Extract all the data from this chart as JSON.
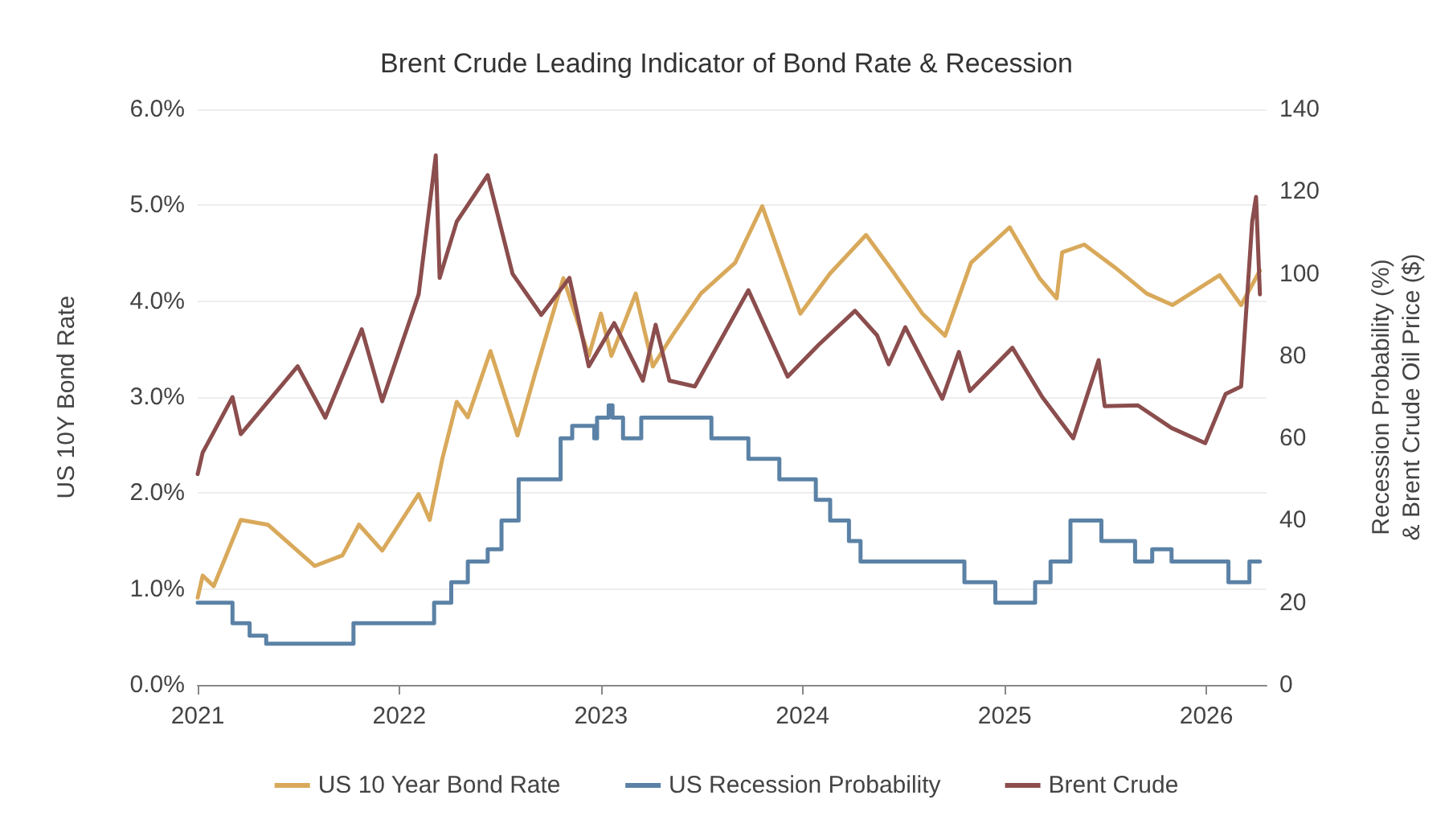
{
  "chart_data": {
    "type": "line",
    "title": "Brent Crude Leading Indicator of Bond Rate & Recession",
    "ylabel": "US 10Y Bond Rate",
    "y2label": "Recession Probability (%) & Brent Crude Oil Price ($)",
    "xlim": [
      "2021-01-01",
      "2026-04-20"
    ],
    "xticks": [
      "2021",
      "2022",
      "2023",
      "2024",
      "2025",
      "2026"
    ],
    "ylim": [
      0,
      6
    ],
    "yticks": [
      {
        "value": 0,
        "label": "0.0%"
      },
      {
        "value": 1,
        "label": "1.0%"
      },
      {
        "value": 2,
        "label": "2.0%"
      },
      {
        "value": 3,
        "label": "3.0%"
      },
      {
        "value": 4,
        "label": "4.0%"
      },
      {
        "value": 5,
        "label": "5.0%"
      },
      {
        "value": 6,
        "label": "6.0%"
      }
    ],
    "y2lim": [
      0,
      140
    ],
    "y2ticks": [
      0,
      20,
      40,
      60,
      80,
      100,
      120,
      140
    ],
    "grid": "y",
    "legend": "bottom",
    "line_style": "solid",
    "marker": "none",
    "series": [
      {
        "name": "US 10 Year Bond Rate",
        "color": "#d9a95b",
        "x": [
          "2021-01-01",
          "2021-01-10",
          "2021-01-30",
          "2021-03-20",
          "2021-05-08",
          "2021-08-01",
          "2021-09-20",
          "2021-10-20",
          "2021-12-01",
          "2022-02-05",
          "2022-02-25",
          "2022-03-20",
          "2022-04-15",
          "2022-05-05",
          "2022-06-15",
          "2022-08-03",
          "2022-09-05",
          "2022-10-25",
          "2022-12-10",
          "2023-01-01",
          "2023-01-20",
          "2023-03-05",
          "2023-04-05",
          "2023-05-10",
          "2023-07-01",
          "2023-09-01",
          "2023-10-20",
          "2023-12-28",
          "2024-02-20",
          "2024-04-25",
          "2024-06-15",
          "2024-08-05",
          "2024-09-15",
          "2024-11-01",
          "2025-01-10",
          "2025-03-05",
          "2025-04-05",
          "2025-04-15",
          "2025-05-25",
          "2025-07-20",
          "2025-09-15",
          "2025-11-01",
          "2026-01-25",
          "2026-03-05",
          "2026-04-08"
        ],
        "values": [
          0.91,
          1.14,
          1.03,
          1.72,
          1.67,
          1.24,
          1.35,
          1.67,
          1.4,
          1.99,
          1.72,
          2.36,
          2.95,
          2.79,
          3.48,
          2.6,
          3.27,
          4.24,
          3.43,
          3.87,
          3.43,
          4.08,
          3.32,
          3.64,
          4.08,
          4.4,
          4.99,
          3.87,
          4.29,
          4.69,
          4.29,
          3.87,
          3.64,
          4.4,
          4.77,
          4.24,
          4.03,
          4.51,
          4.59,
          4.35,
          4.08,
          3.96,
          4.27,
          3.96,
          4.32
        ]
      },
      {
        "name": "US Recession Probability",
        "color": "#5b82a6",
        "type": "step",
        "axis": "y2",
        "x": [
          "2021-01-01",
          "2021-03-05",
          "2021-04-05",
          "2021-05-05",
          "2021-10-10",
          "2022-03-05",
          "2022-04-05",
          "2022-05-05",
          "2022-06-10",
          "2022-07-05",
          "2022-08-05",
          "2022-10-20",
          "2022-11-10",
          "2022-12-20",
          "2022-12-25",
          "2023-01-15",
          "2023-01-22",
          "2023-02-10",
          "2023-03-15",
          "2023-07-20",
          "2023-09-25",
          "2023-11-20",
          "2024-01-25",
          "2024-02-20",
          "2024-03-25",
          "2024-04-15",
          "2024-10-20",
          "2024-12-15",
          "2025-02-25",
          "2025-03-25",
          "2025-04-30",
          "2025-06-25",
          "2025-08-25",
          "2025-09-25",
          "2025-10-30",
          "2026-02-10",
          "2026-03-20",
          "2026-04-08"
        ],
        "values": [
          20,
          15,
          12,
          10,
          15,
          20,
          25,
          30,
          33,
          40,
          50,
          60,
          63,
          60,
          65,
          68,
          65,
          60,
          65,
          60,
          55,
          50,
          45,
          40,
          35,
          30,
          25,
          20,
          25,
          30,
          40,
          35,
          30,
          33,
          30,
          25,
          30,
          30
        ]
      },
      {
        "name": "Brent Crude",
        "color": "#8b4d4d",
        "axis": "y2",
        "x": [
          "2021-01-01",
          "2021-01-10",
          "2021-03-05",
          "2021-03-20",
          "2021-07-01",
          "2021-08-20",
          "2021-10-25",
          "2021-12-01",
          "2022-02-05",
          "2022-03-08",
          "2022-03-15",
          "2022-04-15",
          "2022-06-10",
          "2022-07-25",
          "2022-09-15",
          "2022-11-05",
          "2022-12-10",
          "2023-01-25",
          "2023-03-18",
          "2023-04-10",
          "2023-05-05",
          "2023-06-20",
          "2023-09-25",
          "2023-12-05",
          "2024-01-30",
          "2024-04-05",
          "2024-05-15",
          "2024-06-05",
          "2024-07-05",
          "2024-09-10",
          "2024-10-10",
          "2024-10-30",
          "2025-01-15",
          "2025-03-10",
          "2025-05-05",
          "2025-06-20",
          "2025-07-01",
          "2025-08-30",
          "2025-10-30",
          "2025-12-30",
          "2026-02-05",
          "2026-03-05",
          "2026-03-25",
          "2026-04-01",
          "2026-04-08"
        ],
        "values": [
          51.3,
          56.5,
          70,
          61,
          77.5,
          65,
          86.5,
          69,
          95,
          128.8,
          99,
          112.7,
          124,
          100,
          90,
          99,
          77.5,
          88,
          74,
          87.6,
          74,
          72.6,
          96,
          75,
          82.7,
          91,
          85,
          78,
          87,
          69.6,
          81,
          71.5,
          82,
          70,
          60,
          79,
          67.8,
          68,
          62.5,
          58.8,
          70.8,
          72.6,
          112.7,
          118.7,
          95
        ]
      }
    ]
  }
}
